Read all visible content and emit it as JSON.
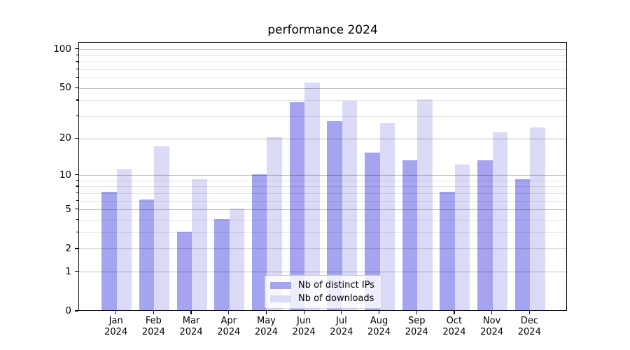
{
  "chart_data": {
    "type": "bar",
    "title": "performance 2024",
    "categories": [
      "Jan",
      "Feb",
      "Mar",
      "Apr",
      "May",
      "Jun",
      "Jul",
      "Aug",
      "Sep",
      "Oct",
      "Nov",
      "Dec"
    ],
    "year_label": "2024",
    "series": [
      {
        "name": "Nb of distinct IPs",
        "color": "#a4a4f0",
        "values": [
          7,
          6,
          3,
          4,
          10,
          38,
          27,
          15,
          13,
          7,
          13,
          9
        ]
      },
      {
        "name": "Nb of downloads",
        "color": "#dbdbf8",
        "values": [
          11,
          17,
          9,
          5,
          20,
          54,
          39,
          26,
          40,
          12,
          22,
          24
        ]
      }
    ],
    "xlabel": "",
    "ylabel": "",
    "yscale": "log1p",
    "ylim": [
      0,
      113
    ],
    "yticks_major": [
      0,
      1,
      2,
      5,
      10,
      20,
      50,
      100
    ],
    "yticks_minor": [
      3,
      4,
      6,
      7,
      8,
      9,
      30,
      40,
      60,
      70,
      80,
      90
    ],
    "grid": true,
    "legend_position": "lower center"
  }
}
